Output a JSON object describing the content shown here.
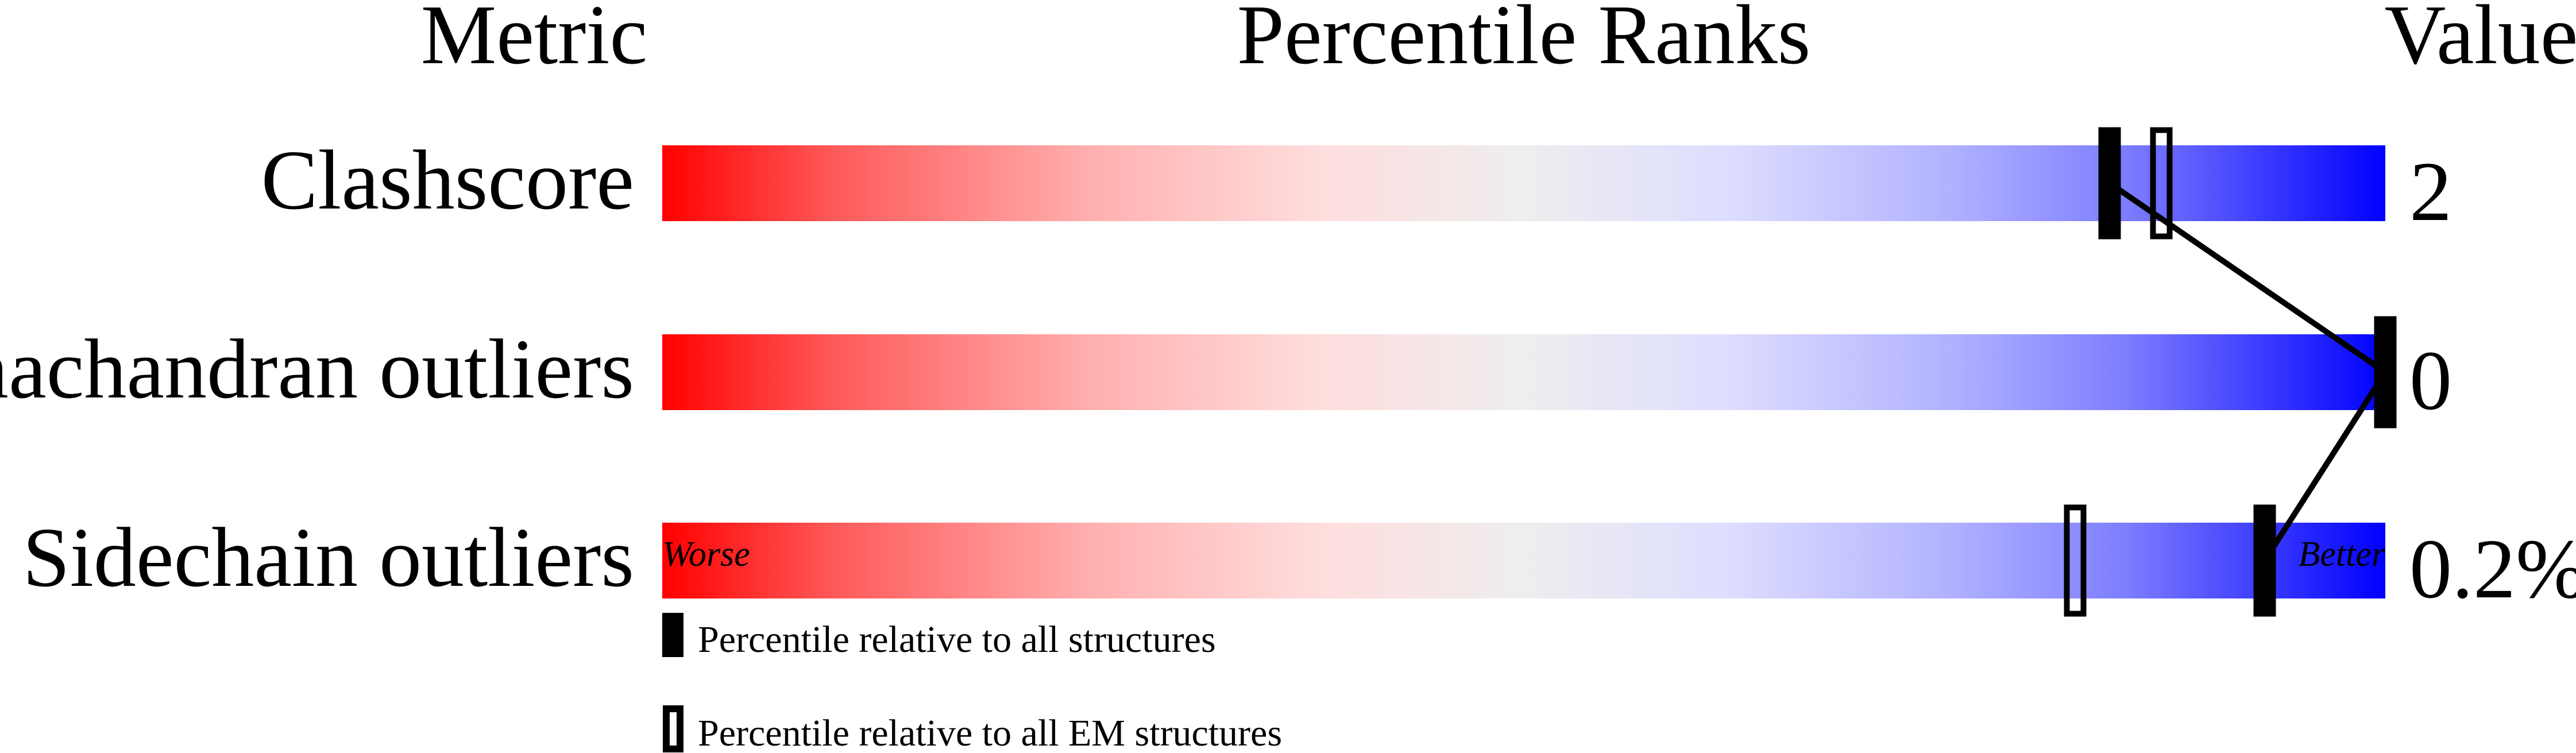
{
  "chart_data": {
    "type": "percentile-slider",
    "headers": {
      "metric": "Metric",
      "ranks": "Percentile Ranks",
      "value": "Value"
    },
    "xlim": [
      0,
      100
    ],
    "axis_labels": {
      "left": "Worse",
      "right": "Better"
    },
    "gradient_colors": [
      "#ff0000",
      "#ffdddd",
      "#eeeeee",
      "#ddddff",
      "#0000ff"
    ],
    "rows": [
      {
        "metric": "Clashscore",
        "value": "2",
        "percentile_all": 84,
        "percentile_em": 87
      },
      {
        "metric": "Ramachandran outliers",
        "value": "0",
        "percentile_all": 100,
        "percentile_em": null
      },
      {
        "metric": "Sidechain outliers",
        "value": "0.2%",
        "percentile_all": 93,
        "percentile_em": 82
      }
    ],
    "legend": [
      {
        "marker": "filled",
        "label": "Percentile relative to all structures"
      },
      {
        "marker": "hollow",
        "label": "Percentile relative to all EM structures"
      }
    ]
  }
}
